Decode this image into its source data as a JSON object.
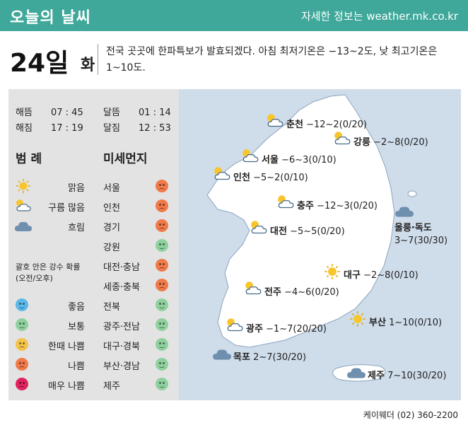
{
  "header": {
    "title": "오늘의 날씨",
    "site": "자세한 정보는 weather.mk.co.kr"
  },
  "date": {
    "day": "24일",
    "weekday": "화"
  },
  "summary": "전국 곳곳에 한파특보가 발효되겠다. 아침 최저기온은 −13~2도, 낮 최고기온은 1~10도.",
  "sun": [
    {
      "label": "해뜸",
      "value": "07 : 45"
    },
    {
      "label": "해짐",
      "value": "17 : 19"
    }
  ],
  "moon": [
    {
      "label": "달뜸",
      "value": "01 : 14"
    },
    {
      "label": "달짐",
      "value": "12 : 53"
    }
  ],
  "legend": {
    "title": "범 례",
    "items": [
      {
        "icon": "sun-icon",
        "label": "맑음"
      },
      {
        "icon": "partly-cloudy-icon",
        "label": "구름 많음"
      },
      {
        "icon": "cloud-icon",
        "label": "흐림"
      }
    ],
    "prob_note_1": "괄호 안은 강수 확률",
    "prob_note_2": "(오전/오후)",
    "grades": [
      {
        "label": "좋음",
        "grade": "good"
      },
      {
        "label": "보통",
        "grade": "normal"
      },
      {
        "label": "한때 나쁨",
        "grade": "bit"
      },
      {
        "label": "나쁨",
        "grade": "bad"
      },
      {
        "label": "매우 나쁨",
        "grade": "vbad"
      }
    ]
  },
  "dust": {
    "title": "미세먼지",
    "regions": [
      {
        "name": "서울",
        "grade": "bad"
      },
      {
        "name": "인천",
        "grade": "bad"
      },
      {
        "name": "경기",
        "grade": "bad"
      },
      {
        "name": "강원",
        "grade": "normal"
      },
      {
        "name": "대전·충남",
        "grade": "bad"
      },
      {
        "name": "세종·충북",
        "grade": "bad"
      },
      {
        "name": "전북",
        "grade": "normal"
      },
      {
        "name": "광주·전남",
        "grade": "normal"
      },
      {
        "name": "대구·경북",
        "grade": "normal"
      },
      {
        "name": "부산·경남",
        "grade": "normal"
      },
      {
        "name": "제주",
        "grade": "normal"
      }
    ]
  },
  "cities": [
    {
      "name": "춘천",
      "temp": "−12~2",
      "prob": "(0/20)",
      "icon": "partly-cloudy-icon"
    },
    {
      "name": "강릉",
      "temp": "−2~8",
      "prob": "(0/20)",
      "icon": "partly-cloudy-icon"
    },
    {
      "name": "서울",
      "temp": "−6~3",
      "prob": "(0/10)",
      "icon": "partly-cloudy-icon"
    },
    {
      "name": "인천",
      "temp": "−5~2",
      "prob": "(0/10)",
      "icon": "partly-cloudy-icon"
    },
    {
      "name": "충주",
      "temp": "−12~3",
      "prob": "(0/20)",
      "icon": "partly-cloudy-icon"
    },
    {
      "name": "대전",
      "temp": "−5~5",
      "prob": "(0/20)",
      "icon": "partly-cloudy-icon"
    },
    {
      "name": "대구",
      "temp": "−2~8",
      "prob": "(0/10)",
      "icon": "sun-icon"
    },
    {
      "name": "전주",
      "temp": "−4~6",
      "prob": "(0/20)",
      "icon": "partly-cloudy-icon"
    },
    {
      "name": "부산",
      "temp": "1~10",
      "prob": "(0/10)",
      "icon": "sun-icon"
    },
    {
      "name": "광주",
      "temp": "−1~7",
      "prob": "(20/20)",
      "icon": "partly-cloudy-icon"
    },
    {
      "name": "목포",
      "temp": "2~7",
      "prob": "(30/20)",
      "icon": "cloud-icon"
    },
    {
      "name": "제주",
      "temp": "7~10",
      "prob": "(30/20)",
      "icon": "cloud-icon"
    }
  ],
  "ulleung": {
    "name": "울릉·독도",
    "temp": "3~7",
    "prob": "(30/30)",
    "icon": "cloud-icon"
  },
  "footer": "케이웨더 (02) 360-2200",
  "colors": {
    "header": "#3fa89a",
    "panel": "#e3e3e3",
    "map_sea": "#cfdcea",
    "land": "#ffffff"
  }
}
